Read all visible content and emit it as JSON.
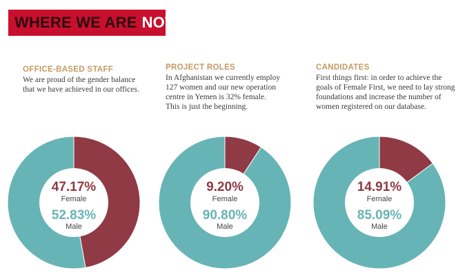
{
  "header": {
    "title_part1": "WHERE WE ARE",
    "title_part2": "NOW",
    "background_color": "#c8102e"
  },
  "colors": {
    "female": "#8f3a44",
    "male": "#67b4b6",
    "title": "#c49a63"
  },
  "sections": [
    {
      "title": "OFFICE-BASED STAFF",
      "body_lines": [
        "We are proud of the gender balance",
        "that we have achieved in our offices."
      ]
    },
    {
      "title": "PROJECT ROLES",
      "body_lines": [
        "In Afghanistan we currently employ",
        "127 women and our new operation",
        "centre in Yemen is 32% female.",
        "This is just the beginning."
      ]
    },
    {
      "title": "CANDIDATES",
      "body_lines": [
        "First things first: in order to achieve the",
        "goals of Female First, we need to lay strong",
        "foundations and increase the number of",
        "women registered on our database."
      ]
    }
  ],
  "chart_data": [
    {
      "type": "pie",
      "categories": [
        "Female",
        "Male"
      ],
      "values": [
        47.17,
        52.83
      ],
      "value_labels": [
        "47.17%",
        "52.83%"
      ]
    },
    {
      "type": "pie",
      "categories": [
        "Female",
        "Male"
      ],
      "values": [
        9.2,
        90.8
      ],
      "value_labels": [
        "9.20%",
        "90.80%"
      ]
    },
    {
      "type": "pie",
      "categories": [
        "Female",
        "Male"
      ],
      "values": [
        14.91,
        85.09
      ],
      "value_labels": [
        "14.91%",
        "85.09%"
      ]
    }
  ]
}
